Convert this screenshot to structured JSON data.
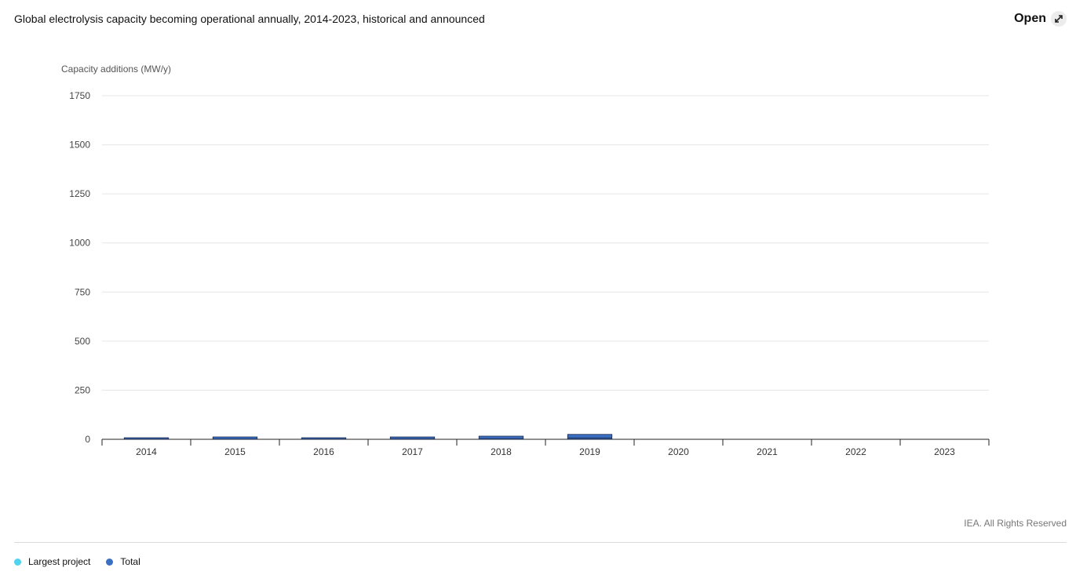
{
  "header": {
    "title": "Global electrolysis capacity becoming operational annually, 2014-2023, historical and announced",
    "open_label": "Open",
    "open_icon": "expand-arrows-icon"
  },
  "footer": {
    "credit": "IEA. All Rights Reserved"
  },
  "legend": [
    {
      "label": "Largest project",
      "color": "#4fd3ef"
    },
    {
      "label": "Total",
      "color": "#3a6fc4"
    }
  ],
  "chart_data": {
    "type": "bar",
    "title": "Global electrolysis capacity becoming operational annually, 2014-2023, historical and announced",
    "ylabel": "Capacity additions (MW/y)",
    "xlabel": "",
    "categories": [
      "2014",
      "2015",
      "2016",
      "2017",
      "2018",
      "2019",
      "2020",
      "2021",
      "2022",
      "2023"
    ],
    "yticks": [
      0,
      250,
      500,
      750,
      1000,
      1250,
      1500,
      1750
    ],
    "ylim": [
      0,
      1750
    ],
    "grid": true,
    "legend_position": "bottom-left",
    "series": [
      {
        "name": "Largest project",
        "color": "#4fd3ef",
        "values": [
          2,
          4,
          3,
          5,
          6,
          10,
          0,
          0,
          0,
          0
        ]
      },
      {
        "name": "Total",
        "color": "#3a6fc4",
        "values": [
          6,
          12,
          8,
          12,
          16,
          25,
          0,
          0,
          0,
          0
        ]
      }
    ]
  }
}
